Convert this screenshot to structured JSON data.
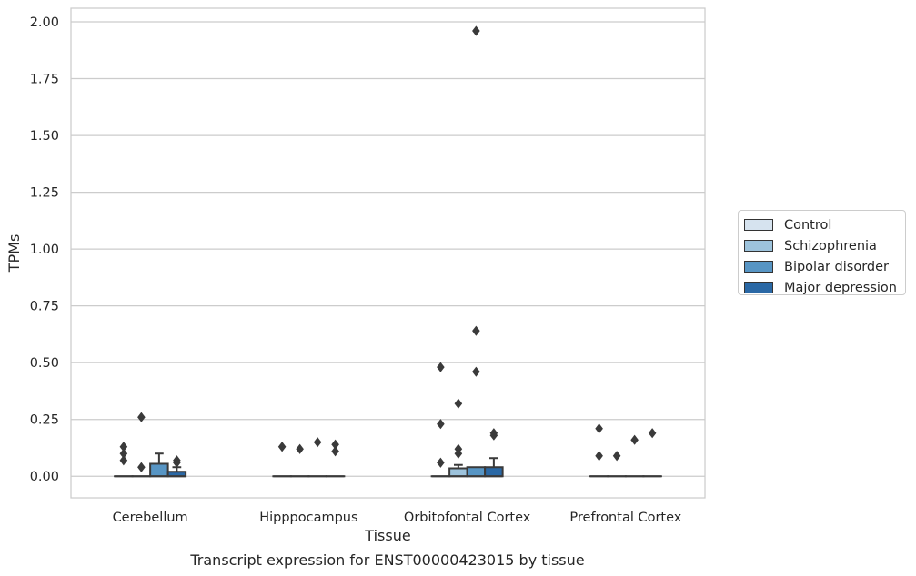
{
  "chart_data": {
    "type": "box",
    "title": "Transcript expression for ENST00000423015 by tissue",
    "xlabel": "Tissue",
    "ylabel": "TPMs",
    "ylim": [
      -0.095,
      2.06
    ],
    "yticks": [
      0,
      0.25,
      0.5,
      0.75,
      1.0,
      1.25,
      1.5,
      1.75,
      2.0
    ],
    "ytick_labels": [
      "0.00",
      "0.25",
      "0.50",
      "0.75",
      "1.00",
      "1.25",
      "1.50",
      "1.75",
      "2.00"
    ],
    "grid": true,
    "legend_position": "right",
    "categories": [
      "Cerebellum",
      "Hipppocampus",
      "Orbitofontal Cortex",
      "Prefrontal Cortex"
    ],
    "series": [
      {
        "name": "Control",
        "color": "#d6e3ef",
        "boxes": [
          {
            "q1": 0,
            "median": 0,
            "q3": 0,
            "whisker_low": 0,
            "whisker_high": 0,
            "outliers": [
              0.13,
              0.1,
              0.07
            ]
          },
          {
            "q1": 0,
            "median": 0,
            "q3": 0,
            "whisker_low": 0,
            "whisker_high": 0,
            "outliers": [
              0.13
            ]
          },
          {
            "q1": 0,
            "median": 0,
            "q3": 0,
            "whisker_low": 0,
            "whisker_high": 0,
            "outliers": [
              0.48,
              0.23,
              0.06
            ]
          },
          {
            "q1": 0,
            "median": 0,
            "q3": 0,
            "whisker_low": 0,
            "whisker_high": 0,
            "outliers": [
              0.21,
              0.09
            ]
          }
        ]
      },
      {
        "name": "Schizophrenia",
        "color": "#9dc3dc",
        "boxes": [
          {
            "q1": 0,
            "median": 0,
            "q3": 0,
            "whisker_low": 0,
            "whisker_high": 0,
            "outliers": [
              0.26,
              0.04
            ]
          },
          {
            "q1": 0,
            "median": 0,
            "q3": 0,
            "whisker_low": 0,
            "whisker_high": 0,
            "outliers": [
              0.12
            ]
          },
          {
            "q1": 0,
            "median": 0,
            "q3": 0.035,
            "whisker_low": 0,
            "whisker_high": 0.05,
            "outliers": [
              0.32,
              0.12,
              0.1
            ]
          },
          {
            "q1": 0,
            "median": 0,
            "q3": 0,
            "whisker_low": 0,
            "whisker_high": 0,
            "outliers": [
              0.09
            ]
          }
        ]
      },
      {
        "name": "Bipolar disorder",
        "color": "#5795c4",
        "boxes": [
          {
            "q1": 0,
            "median": 0,
            "q3": 0.055,
            "whisker_low": 0,
            "whisker_high": 0.1,
            "outliers": []
          },
          {
            "q1": 0,
            "median": 0,
            "q3": 0,
            "whisker_low": 0,
            "whisker_high": 0,
            "outliers": [
              0.15
            ]
          },
          {
            "q1": 0,
            "median": 0,
            "q3": 0.04,
            "whisker_low": 0,
            "whisker_high": 0.04,
            "outliers": [
              1.96,
              0.64,
              0.46
            ]
          },
          {
            "q1": 0,
            "median": 0,
            "q3": 0,
            "whisker_low": 0,
            "whisker_high": 0,
            "outliers": [
              0.16
            ]
          }
        ]
      },
      {
        "name": "Major depression",
        "color": "#2a68a5",
        "boxes": [
          {
            "q1": 0,
            "median": 0,
            "q3": 0.02,
            "whisker_low": 0,
            "whisker_high": 0.04,
            "outliers": [
              0.07,
              0.06
            ]
          },
          {
            "q1": 0,
            "median": 0,
            "q3": 0,
            "whisker_low": 0,
            "whisker_high": 0,
            "outliers": [
              0.14,
              0.11
            ]
          },
          {
            "q1": 0,
            "median": 0,
            "q3": 0.04,
            "whisker_low": 0,
            "whisker_high": 0.08,
            "outliers": [
              0.19,
              0.18
            ]
          },
          {
            "q1": 0,
            "median": 0,
            "q3": 0,
            "whisker_low": 0,
            "whisker_high": 0,
            "outliers": [
              0.19
            ]
          }
        ]
      }
    ]
  }
}
